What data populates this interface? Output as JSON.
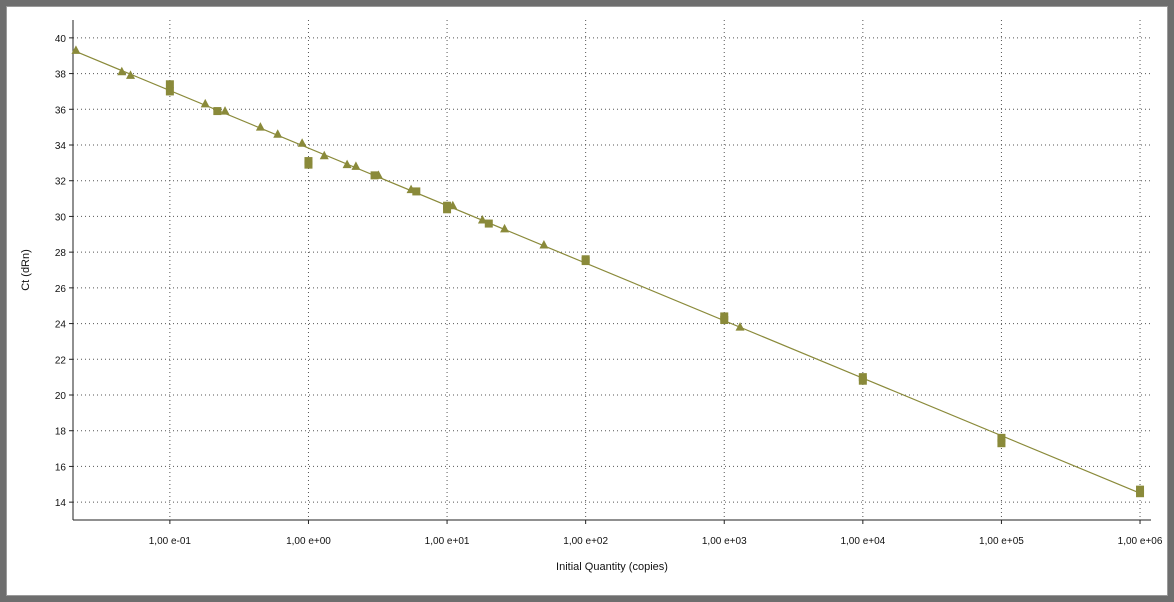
{
  "chart_data": {
    "type": "scatter",
    "title": "",
    "xlabel": "Initial Quantity (copies)",
    "ylabel": "Ct (dRn)",
    "x_scale": "log",
    "xlim": [
      0.02,
      1200000
    ],
    "ylim": [
      13,
      41
    ],
    "grid": true,
    "legend": "none",
    "x_ticks": [
      {
        "value": 0.1,
        "label": "1,00 e-01"
      },
      {
        "value": 1,
        "label": "1,00 e+00"
      },
      {
        "value": 10,
        "label": "1,00 e+01"
      },
      {
        "value": 100,
        "label": "1,00 e+02"
      },
      {
        "value": 1000,
        "label": "1,00 e+03"
      },
      {
        "value": 10000,
        "label": "1,00 e+04"
      },
      {
        "value": 100000,
        "label": "1,00 e+05"
      },
      {
        "value": 1000000,
        "label": "1,00 e+06"
      }
    ],
    "y_ticks": [
      {
        "value": 14,
        "label": "14"
      },
      {
        "value": 16,
        "label": "16"
      },
      {
        "value": 18,
        "label": "18"
      },
      {
        "value": 20,
        "label": "20"
      },
      {
        "value": 22,
        "label": "22"
      },
      {
        "value": 24,
        "label": "24"
      },
      {
        "value": 26,
        "label": "26"
      },
      {
        "value": 28,
        "label": "28"
      },
      {
        "value": 30,
        "label": "30"
      },
      {
        "value": 32,
        "label": "32"
      },
      {
        "value": 34,
        "label": "34"
      },
      {
        "value": 36,
        "label": "36"
      },
      {
        "value": 38,
        "label": "38"
      },
      {
        "value": 40,
        "label": "40"
      }
    ],
    "fit_line": {
      "x": [
        0.02,
        1000000
      ],
      "y": [
        39.3,
        14.5
      ],
      "color": "#8a8a3a"
    },
    "series": [
      {
        "marker": "square",
        "color": "#8a8a3a",
        "points": [
          {
            "x": 0.1,
            "y": 37.4
          },
          {
            "x": 0.1,
            "y": 37.0
          },
          {
            "x": 0.22,
            "y": 35.9
          },
          {
            "x": 1,
            "y": 33.1
          },
          {
            "x": 1,
            "y": 32.9
          },
          {
            "x": 3,
            "y": 32.3
          },
          {
            "x": 6,
            "y": 31.4
          },
          {
            "x": 10,
            "y": 30.6
          },
          {
            "x": 10,
            "y": 30.4
          },
          {
            "x": 20,
            "y": 29.6
          },
          {
            "x": 100,
            "y": 27.6
          },
          {
            "x": 100,
            "y": 27.5
          },
          {
            "x": 1000,
            "y": 24.4
          },
          {
            "x": 1000,
            "y": 24.2
          },
          {
            "x": 10000,
            "y": 21.0
          },
          {
            "x": 10000,
            "y": 20.8
          },
          {
            "x": 100000,
            "y": 17.6
          },
          {
            "x": 100000,
            "y": 17.3
          },
          {
            "x": 1000000,
            "y": 14.7
          },
          {
            "x": 1000000,
            "y": 14.5
          }
        ]
      },
      {
        "marker": "triangle",
        "color": "#8a8a3a",
        "points": [
          {
            "x": 0.021,
            "y": 39.3
          },
          {
            "x": 0.045,
            "y": 38.1
          },
          {
            "x": 0.052,
            "y": 37.9
          },
          {
            "x": 0.18,
            "y": 36.3
          },
          {
            "x": 0.25,
            "y": 35.9
          },
          {
            "x": 0.45,
            "y": 35.0
          },
          {
            "x": 0.6,
            "y": 34.6
          },
          {
            "x": 0.9,
            "y": 34.1
          },
          {
            "x": 1.3,
            "y": 33.4
          },
          {
            "x": 1.9,
            "y": 32.9
          },
          {
            "x": 2.2,
            "y": 32.8
          },
          {
            "x": 3.2,
            "y": 32.3
          },
          {
            "x": 5.5,
            "y": 31.5
          },
          {
            "x": 11,
            "y": 30.6
          },
          {
            "x": 18,
            "y": 29.8
          },
          {
            "x": 26,
            "y": 29.3
          },
          {
            "x": 50,
            "y": 28.4
          },
          {
            "x": 1300,
            "y": 23.8
          }
        ]
      }
    ]
  }
}
